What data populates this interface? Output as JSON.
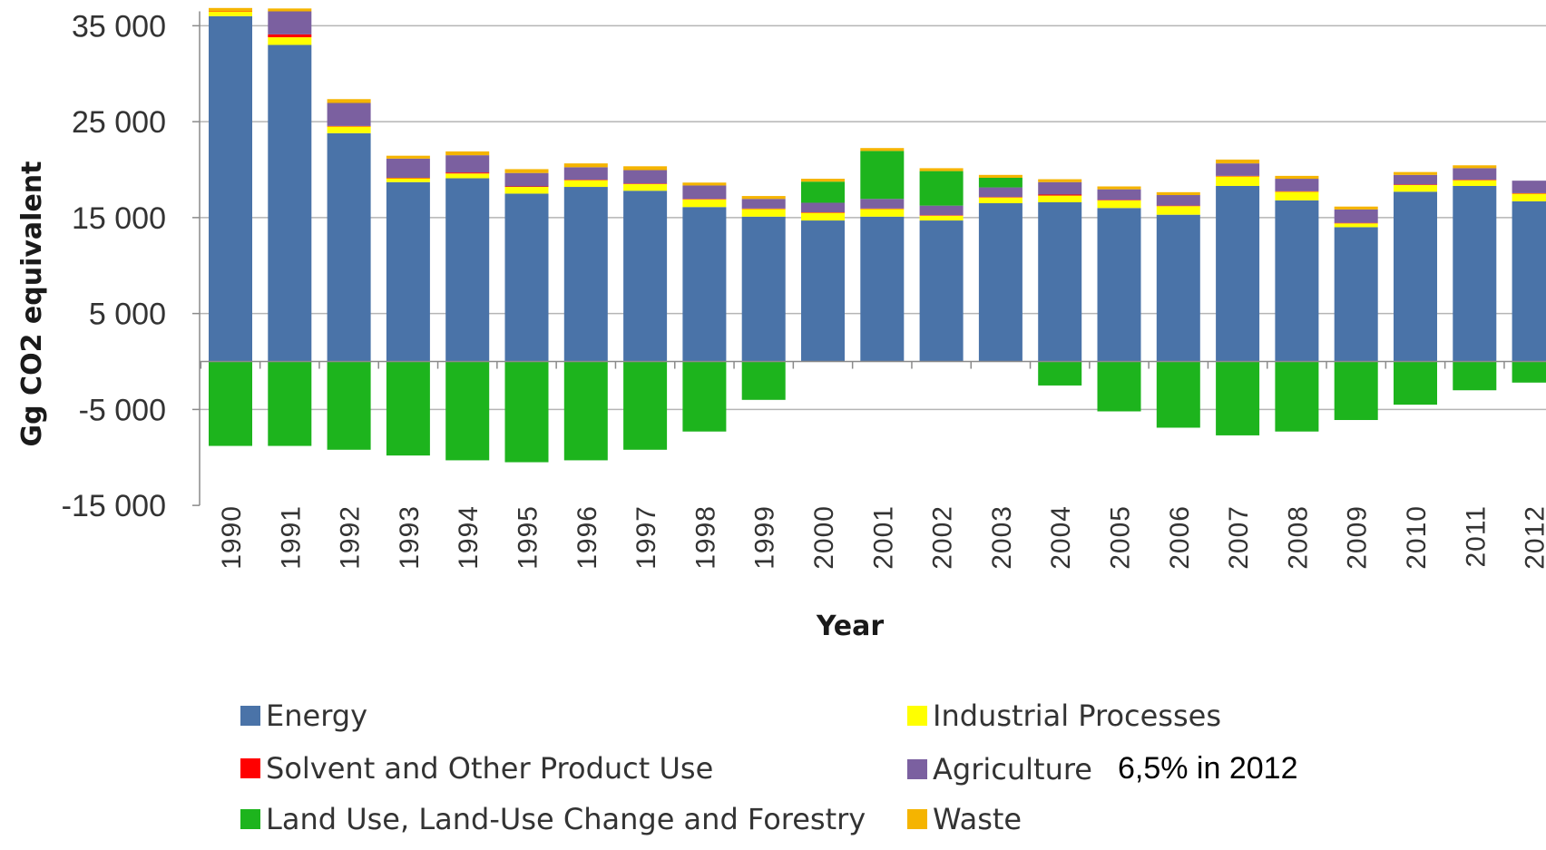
{
  "chart_data": {
    "type": "bar",
    "stacked": true,
    "ylabel": "Gg CO2 equivalent",
    "xlabel": "Year",
    "ylim": [
      -15000,
      36500
    ],
    "yticks": [
      35000,
      25000,
      15000,
      5000,
      -5000,
      -15000
    ],
    "ytick_labels": [
      "35 000",
      "25 000",
      "15 000",
      "5 000",
      "-5 000",
      "-15 000"
    ],
    "gridlines": [
      35000,
      25000,
      15000,
      5000,
      -5000
    ],
    "grid": true,
    "legend_position": "bottom",
    "categories": [
      "1990",
      "1991",
      "1992",
      "1993",
      "1994",
      "1995",
      "1996",
      "1997",
      "1998",
      "1999",
      "2000",
      "2001",
      "2002",
      "2003",
      "2004",
      "2005",
      "2006",
      "2007",
      "2008",
      "2009",
      "2010",
      "2011",
      "2012"
    ],
    "series": [
      {
        "name": "Energy",
        "color": "#4a73a8",
        "values": [
          36000,
          33000,
          23800,
          18700,
          19100,
          17500,
          18200,
          17800,
          16100,
          15100,
          14700,
          15100,
          14700,
          16500,
          16600,
          16000,
          15300,
          18300,
          16800,
          14000,
          17700,
          18300,
          16700
        ]
      },
      {
        "name": "Industrial Processes",
        "color": "#ffff00",
        "values": [
          500,
          800,
          700,
          400,
          500,
          700,
          700,
          700,
          800,
          800,
          800,
          800,
          500,
          600,
          700,
          800,
          900,
          1000,
          900,
          400,
          700,
          600,
          800
        ]
      },
      {
        "name": "Solvent and Other Product Use",
        "color": "#ff0000",
        "values": [
          50,
          300,
          50,
          50,
          100,
          50,
          50,
          50,
          50,
          50,
          50,
          50,
          50,
          50,
          100,
          50,
          50,
          50,
          50,
          50,
          50,
          50,
          50
        ]
      },
      {
        "name": "Agriculture",
        "color": "#7b60a0",
        "values": [
          0,
          2400,
          2400,
          2000,
          1800,
          1400,
          1300,
          1400,
          1400,
          1000,
          1000,
          1000,
          1000,
          1000,
          1300,
          1100,
          1100,
          1300,
          1300,
          1400,
          1000,
          1200,
          1300
        ]
      },
      {
        "name": "Land Use, Land-Use Change and Forestry",
        "color": "#1db41d",
        "values": [
          -8800,
          -8800,
          -9200,
          -9800,
          -10300,
          -10500,
          -10300,
          -9200,
          -7300,
          -4000,
          2200,
          5000,
          3600,
          1000,
          -2500,
          -5200,
          -6900,
          -7700,
          -7300,
          -6100,
          -4500,
          -3000,
          -2200
        ]
      },
      {
        "name": "Waste",
        "color": "#f5b400",
        "values": [
          300,
          300,
          400,
          300,
          400,
          400,
          400,
          400,
          300,
          300,
          300,
          300,
          300,
          300,
          300,
          300,
          300,
          400,
          300,
          300,
          300,
          300,
          0
        ]
      }
    ],
    "annotation": "6,5% in 2012"
  },
  "legend_entries": [
    {
      "label": "Energy",
      "color": "#4a73a8"
    },
    {
      "label": "Industrial Processes",
      "color": "#ffff00"
    },
    {
      "label": "Solvent and Other Product Use",
      "color": "#ff0000"
    },
    {
      "label": "Agriculture",
      "color": "#7b60a0"
    },
    {
      "label": "Land Use, Land-Use Change and Forestry",
      "color": "#1db41d"
    },
    {
      "label": "Waste",
      "color": "#f5b400"
    }
  ]
}
